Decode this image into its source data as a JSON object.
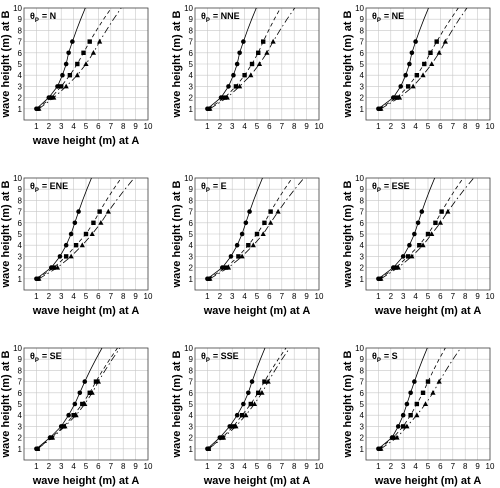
{
  "chart_data": [
    {
      "type": "scatter",
      "title_symbol": "θ",
      "title_subscript": "P",
      "title_value": "= N",
      "xlabel": "wave height (m) at A",
      "ylabel": "wave height (m) at B",
      "xlim": [
        0,
        10
      ],
      "ylim": [
        0,
        10
      ],
      "ticks": [
        "1",
        "2",
        "3",
        "4",
        "5",
        "6",
        "7",
        "8",
        "9",
        "10"
      ],
      "grid": true,
      "series": [
        {
          "marker": "circle",
          "line": "solid",
          "points": [
            [
              1.0,
              1
            ],
            [
              2.0,
              2
            ],
            [
              2.7,
              3
            ],
            [
              3.1,
              4
            ],
            [
              3.4,
              5
            ],
            [
              3.6,
              6
            ],
            [
              3.9,
              7
            ]
          ]
        },
        {
          "marker": "square",
          "line": "dash",
          "points": [
            [
              1.1,
              1
            ],
            [
              2.2,
              2
            ],
            [
              3.0,
              3
            ],
            [
              3.7,
              4
            ],
            [
              4.3,
              5
            ],
            [
              4.8,
              6
            ],
            [
              5.3,
              7
            ]
          ]
        },
        {
          "marker": "triangle",
          "line": "dashdot",
          "points": [
            [
              1.2,
              1
            ],
            [
              2.4,
              2
            ],
            [
              3.4,
              3
            ],
            [
              4.3,
              4
            ],
            [
              5.0,
              5
            ],
            [
              5.6,
              6
            ],
            [
              6.1,
              7
            ]
          ]
        }
      ]
    },
    {
      "type": "scatter",
      "title_symbol": "θ",
      "title_subscript": "P",
      "title_value": "= NNE",
      "xlabel": "",
      "ylabel": "wave height (m) at B",
      "xlim": [
        0,
        10
      ],
      "ylim": [
        0,
        10
      ],
      "ticks": [
        "1",
        "2",
        "3",
        "4",
        "5",
        "6",
        "7",
        "8",
        "9",
        "10"
      ],
      "grid": true,
      "series": [
        {
          "marker": "circle",
          "line": "solid",
          "points": [
            [
              1.0,
              1
            ],
            [
              2.1,
              2
            ],
            [
              2.7,
              3
            ],
            [
              3.1,
              4
            ],
            [
              3.4,
              5
            ],
            [
              3.6,
              6
            ],
            [
              3.9,
              7
            ]
          ]
        },
        {
          "marker": "square",
          "line": "dash",
          "points": [
            [
              1.1,
              1
            ],
            [
              2.4,
              2
            ],
            [
              3.3,
              3
            ],
            [
              4.0,
              4
            ],
            [
              4.6,
              5
            ],
            [
              5.1,
              6
            ],
            [
              5.5,
              7
            ]
          ]
        },
        {
          "marker": "triangle",
          "line": "dashdot",
          "points": [
            [
              1.2,
              1
            ],
            [
              2.6,
              2
            ],
            [
              3.6,
              3
            ],
            [
              4.5,
              4
            ],
            [
              5.2,
              5
            ],
            [
              5.8,
              6
            ],
            [
              6.3,
              7
            ]
          ]
        }
      ]
    },
    {
      "type": "scatter",
      "title_symbol": "θ",
      "title_subscript": "P",
      "title_value": "= NE",
      "xlabel": "",
      "ylabel": "wave height (m) at B",
      "xlim": [
        0,
        10
      ],
      "ylim": [
        0,
        10
      ],
      "ticks": [
        "1",
        "2",
        "3",
        "4",
        "5",
        "6",
        "7",
        "8",
        "9",
        "10"
      ],
      "grid": true,
      "series": [
        {
          "marker": "circle",
          "line": "solid",
          "points": [
            [
              1.0,
              1
            ],
            [
              2.2,
              2
            ],
            [
              2.8,
              3
            ],
            [
              3.2,
              4
            ],
            [
              3.5,
              5
            ],
            [
              3.7,
              6
            ],
            [
              4.0,
              7
            ]
          ]
        },
        {
          "marker": "square",
          "line": "dash",
          "points": [
            [
              1.1,
              1
            ],
            [
              2.5,
              2
            ],
            [
              3.4,
              3
            ],
            [
              4.1,
              4
            ],
            [
              4.7,
              5
            ],
            [
              5.2,
              6
            ],
            [
              5.7,
              7
            ]
          ]
        },
        {
          "marker": "triangle",
          "line": "dashdot",
          "points": [
            [
              1.2,
              1
            ],
            [
              2.7,
              2
            ],
            [
              3.8,
              3
            ],
            [
              4.6,
              4
            ],
            [
              5.3,
              5
            ],
            [
              5.9,
              6
            ],
            [
              6.4,
              7
            ]
          ]
        }
      ]
    },
    {
      "type": "scatter",
      "title_symbol": "θ",
      "title_subscript": "P",
      "title_value": "= ENE",
      "xlabel": "wave height (m) at A",
      "ylabel": "wave height (m) at B",
      "xlim": [
        0,
        10
      ],
      "ylim": [
        0,
        10
      ],
      "ticks": [
        "1",
        "2",
        "3",
        "4",
        "5",
        "6",
        "7",
        "8",
        "9",
        "10"
      ],
      "grid": true,
      "series": [
        {
          "marker": "circle",
          "line": "solid",
          "points": [
            [
              1.0,
              1
            ],
            [
              2.2,
              2
            ],
            [
              2.9,
              3
            ],
            [
              3.4,
              4
            ],
            [
              3.8,
              5
            ],
            [
              4.1,
              6
            ],
            [
              4.4,
              7
            ]
          ]
        },
        {
          "marker": "square",
          "line": "dash",
          "points": [
            [
              1.1,
              1
            ],
            [
              2.4,
              2
            ],
            [
              3.4,
              3
            ],
            [
              4.2,
              4
            ],
            [
              5.0,
              5
            ],
            [
              5.6,
              6
            ],
            [
              6.1,
              7
            ]
          ]
        },
        {
          "marker": "triangle",
          "line": "dashdot",
          "points": [
            [
              1.2,
              1
            ],
            [
              2.7,
              2
            ],
            [
              3.8,
              3
            ],
            [
              4.7,
              4
            ],
            [
              5.5,
              5
            ],
            [
              6.2,
              6
            ],
            [
              6.8,
              7
            ]
          ]
        }
      ]
    },
    {
      "type": "scatter",
      "title_symbol": "θ",
      "title_subscript": "P",
      "title_value": "= E",
      "xlabel": "wave height (m) at A",
      "ylabel": "wave height (m) at B",
      "xlim": [
        0,
        10
      ],
      "ylim": [
        0,
        10
      ],
      "ticks": [
        "1",
        "2",
        "3",
        "4",
        "5",
        "6",
        "7",
        "8",
        "9",
        "10"
      ],
      "grid": true,
      "series": [
        {
          "marker": "circle",
          "line": "solid",
          "points": [
            [
              1.0,
              1
            ],
            [
              2.2,
              2
            ],
            [
              2.9,
              3
            ],
            [
              3.4,
              4
            ],
            [
              3.8,
              5
            ],
            [
              4.1,
              6
            ],
            [
              4.4,
              7
            ]
          ]
        },
        {
          "marker": "square",
          "line": "dash",
          "points": [
            [
              1.1,
              1
            ],
            [
              2.5,
              2
            ],
            [
              3.5,
              3
            ],
            [
              4.3,
              4
            ],
            [
              5.0,
              5
            ],
            [
              5.6,
              6
            ],
            [
              6.1,
              7
            ]
          ]
        },
        {
          "marker": "triangle",
          "line": "dashdot",
          "points": [
            [
              1.2,
              1
            ],
            [
              2.7,
              2
            ],
            [
              3.8,
              3
            ],
            [
              4.7,
              4
            ],
            [
              5.5,
              5
            ],
            [
              6.1,
              6
            ],
            [
              6.7,
              7
            ]
          ]
        }
      ]
    },
    {
      "type": "scatter",
      "title_symbol": "θ",
      "title_subscript": "P",
      "title_value": "= ESE",
      "xlabel": "wave height (m) at A",
      "ylabel": "wave height (m) at B",
      "xlim": [
        0,
        10
      ],
      "ylim": [
        0,
        10
      ],
      "ticks": [
        "1",
        "2",
        "3",
        "4",
        "5",
        "6",
        "7",
        "8",
        "9",
        "10"
      ],
      "grid": true,
      "series": [
        {
          "marker": "circle",
          "line": "solid",
          "points": [
            [
              1.0,
              1
            ],
            [
              2.2,
              2
            ],
            [
              3.0,
              3
            ],
            [
              3.5,
              4
            ],
            [
              3.9,
              5
            ],
            [
              4.2,
              6
            ],
            [
              4.5,
              7
            ]
          ]
        },
        {
          "marker": "square",
          "line": "dash",
          "points": [
            [
              1.1,
              1
            ],
            [
              2.4,
              2
            ],
            [
              3.4,
              3
            ],
            [
              4.3,
              4
            ],
            [
              5.0,
              5
            ],
            [
              5.6,
              6
            ],
            [
              6.1,
              7
            ]
          ]
        },
        {
          "marker": "triangle",
          "line": "dashdot",
          "points": [
            [
              1.2,
              1
            ],
            [
              2.6,
              2
            ],
            [
              3.7,
              3
            ],
            [
              4.6,
              4
            ],
            [
              5.3,
              5
            ],
            [
              6.0,
              6
            ],
            [
              6.6,
              7
            ]
          ]
        }
      ]
    },
    {
      "type": "scatter",
      "title_symbol": "θ",
      "title_subscript": "P",
      "title_value": "= SE",
      "xlabel": "wave height (m) at A",
      "ylabel": "wave height (m) at B",
      "xlim": [
        0,
        10
      ],
      "ylim": [
        0,
        10
      ],
      "ticks": [
        "1",
        "2",
        "3",
        "4",
        "5",
        "6",
        "7",
        "8",
        "9",
        "10"
      ],
      "grid": true,
      "series": [
        {
          "marker": "circle",
          "line": "solid",
          "points": [
            [
              1.0,
              1
            ],
            [
              2.1,
              2
            ],
            [
              3.0,
              3
            ],
            [
              3.6,
              4
            ],
            [
              4.1,
              5
            ],
            [
              4.5,
              6
            ],
            [
              4.9,
              7
            ]
          ]
        },
        {
          "marker": "square",
          "line": "dash",
          "points": [
            [
              1.1,
              1
            ],
            [
              2.2,
              2
            ],
            [
              3.2,
              3
            ],
            [
              4.0,
              4
            ],
            [
              4.7,
              5
            ],
            [
              5.3,
              6
            ],
            [
              5.8,
              7
            ]
          ]
        },
        {
          "marker": "triangle",
          "line": "dashdot",
          "points": [
            [
              1.1,
              1
            ],
            [
              2.3,
              2
            ],
            [
              3.3,
              3
            ],
            [
              4.2,
              4
            ],
            [
              4.9,
              5
            ],
            [
              5.5,
              6
            ],
            [
              6.0,
              7
            ]
          ]
        }
      ]
    },
    {
      "type": "scatter",
      "title_symbol": "θ",
      "title_subscript": "P",
      "title_value": "= SSE",
      "xlabel": "wave height (m) at A",
      "ylabel": "wave height (m) at B",
      "xlim": [
        0,
        10
      ],
      "ylim": [
        0,
        10
      ],
      "ticks": [
        "1",
        "2",
        "3",
        "4",
        "5",
        "6",
        "7",
        "8",
        "9",
        "10"
      ],
      "grid": true,
      "series": [
        {
          "marker": "circle",
          "line": "solid",
          "points": [
            [
              1.0,
              1
            ],
            [
              2.0,
              2
            ],
            [
              2.8,
              3
            ],
            [
              3.4,
              4
            ],
            [
              3.9,
              5
            ],
            [
              4.3,
              6
            ],
            [
              4.6,
              7
            ]
          ]
        },
        {
          "marker": "square",
          "line": "dash",
          "points": [
            [
              1.1,
              1
            ],
            [
              2.2,
              2
            ],
            [
              3.1,
              3
            ],
            [
              3.8,
              4
            ],
            [
              4.5,
              5
            ],
            [
              5.1,
              6
            ],
            [
              5.6,
              7
            ]
          ]
        },
        {
          "marker": "triangle",
          "line": "dashdot",
          "points": [
            [
              1.1,
              1
            ],
            [
              2.3,
              2
            ],
            [
              3.3,
              3
            ],
            [
              4.1,
              4
            ],
            [
              4.8,
              5
            ],
            [
              5.4,
              6
            ],
            [
              5.9,
              7
            ]
          ]
        }
      ]
    },
    {
      "type": "scatter",
      "title_symbol": "θ",
      "title_subscript": "P",
      "title_value": "= S",
      "xlabel": "wave height (m) at A",
      "ylabel": "wave height (m) at B",
      "xlim": [
        0,
        10
      ],
      "ylim": [
        0,
        10
      ],
      "ticks": [
        "1",
        "2",
        "3",
        "4",
        "5",
        "6",
        "7",
        "8",
        "9",
        "10"
      ],
      "grid": true,
      "series": [
        {
          "marker": "circle",
          "line": "solid",
          "points": [
            [
              1.0,
              1
            ],
            [
              2.1,
              2
            ],
            [
              2.6,
              3
            ],
            [
              3.0,
              4
            ],
            [
              3.3,
              5
            ],
            [
              3.6,
              6
            ],
            [
              3.9,
              7
            ]
          ]
        },
        {
          "marker": "square",
          "line": "dash",
          "points": [
            [
              1.1,
              1
            ],
            [
              2.2,
              2
            ],
            [
              3.0,
              3
            ],
            [
              3.6,
              4
            ],
            [
              4.1,
              5
            ],
            [
              4.6,
              6
            ],
            [
              5.0,
              7
            ]
          ]
        },
        {
          "marker": "triangle",
          "line": "dashdot",
          "points": [
            [
              1.2,
              1
            ],
            [
              2.5,
              2
            ],
            [
              3.3,
              3
            ],
            [
              4.1,
              4
            ],
            [
              4.8,
              5
            ],
            [
              5.4,
              6
            ],
            [
              5.9,
              7
            ]
          ]
        }
      ]
    }
  ]
}
